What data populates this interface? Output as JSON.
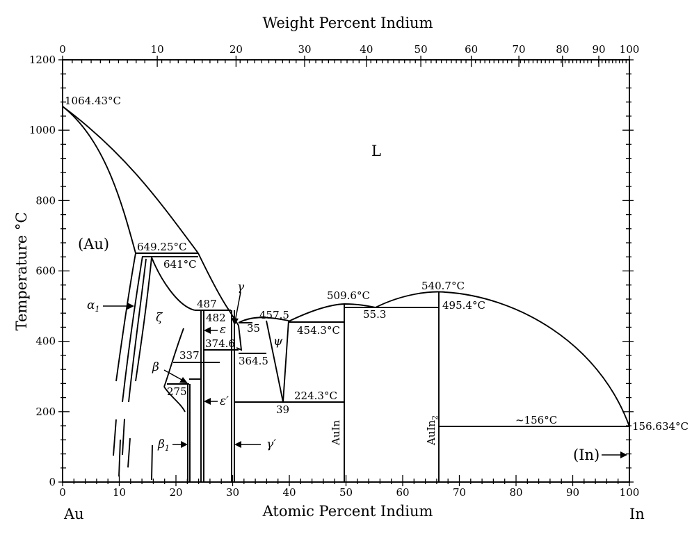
{
  "top_axis": {
    "title": "Weight Percent Indium",
    "ticks": [
      {
        "label": "0",
        "at": 0
      },
      {
        "label": "10",
        "at": 16.7
      },
      {
        "label": "20",
        "at": 30.6
      },
      {
        "label": "30",
        "at": 42.7
      },
      {
        "label": "40",
        "at": 53.6
      },
      {
        "label": "50",
        "at": 63.2
      },
      {
        "label": "60",
        "at": 72.1
      },
      {
        "label": "70",
        "at": 80.5
      },
      {
        "label": "80",
        "at": 88.2
      },
      {
        "label": "90",
        "at": 94.6
      },
      {
        "label": "100",
        "at": 100
      }
    ]
  },
  "bottom_axis": {
    "title": "Atomic Percent Indium",
    "ticks": [
      "0",
      "10",
      "20",
      "30",
      "40",
      "50",
      "60",
      "70",
      "80",
      "90",
      "100"
    ],
    "left_element": "Au",
    "right_element": "In"
  },
  "y_axis": {
    "title": "Temperature °C",
    "ticks": [
      "0",
      "200",
      "400",
      "600",
      "800",
      "1000",
      "1200"
    ]
  },
  "labels": {
    "au_melt": "1064.43°C",
    "in_melt": "156.634°C",
    "liquid": "L",
    "au_phase": "(Au)",
    "in_phase": "(In)",
    "alpha1": "α",
    "alpha1_sub": "1",
    "zeta": "ζ",
    "beta": "β",
    "beta1": "β",
    "beta1_sub": "1",
    "gamma": "γ",
    "gamma_prime": "γ′",
    "epsilon": "ε",
    "epsilon_prime": "ε′",
    "psi": "ψ",
    "t649": "649.25°C",
    "t641": "641°C",
    "t487": "487",
    "t482": "482",
    "t457": "457.5",
    "t35": "35",
    "t454": "454.3°C",
    "t374": "374.6",
    "t364": "364.5",
    "t337": "337",
    "t275": "275",
    "t39": "39",
    "t224": "224.3°C",
    "t509": "509.6°C",
    "t540": "540.7°C",
    "t55": "55.3",
    "t495": "495.4°C",
    "t156": "~156°C",
    "auin": "AuIn",
    "auin2_base": "AuIn",
    "auin2_sub": "2"
  }
}
